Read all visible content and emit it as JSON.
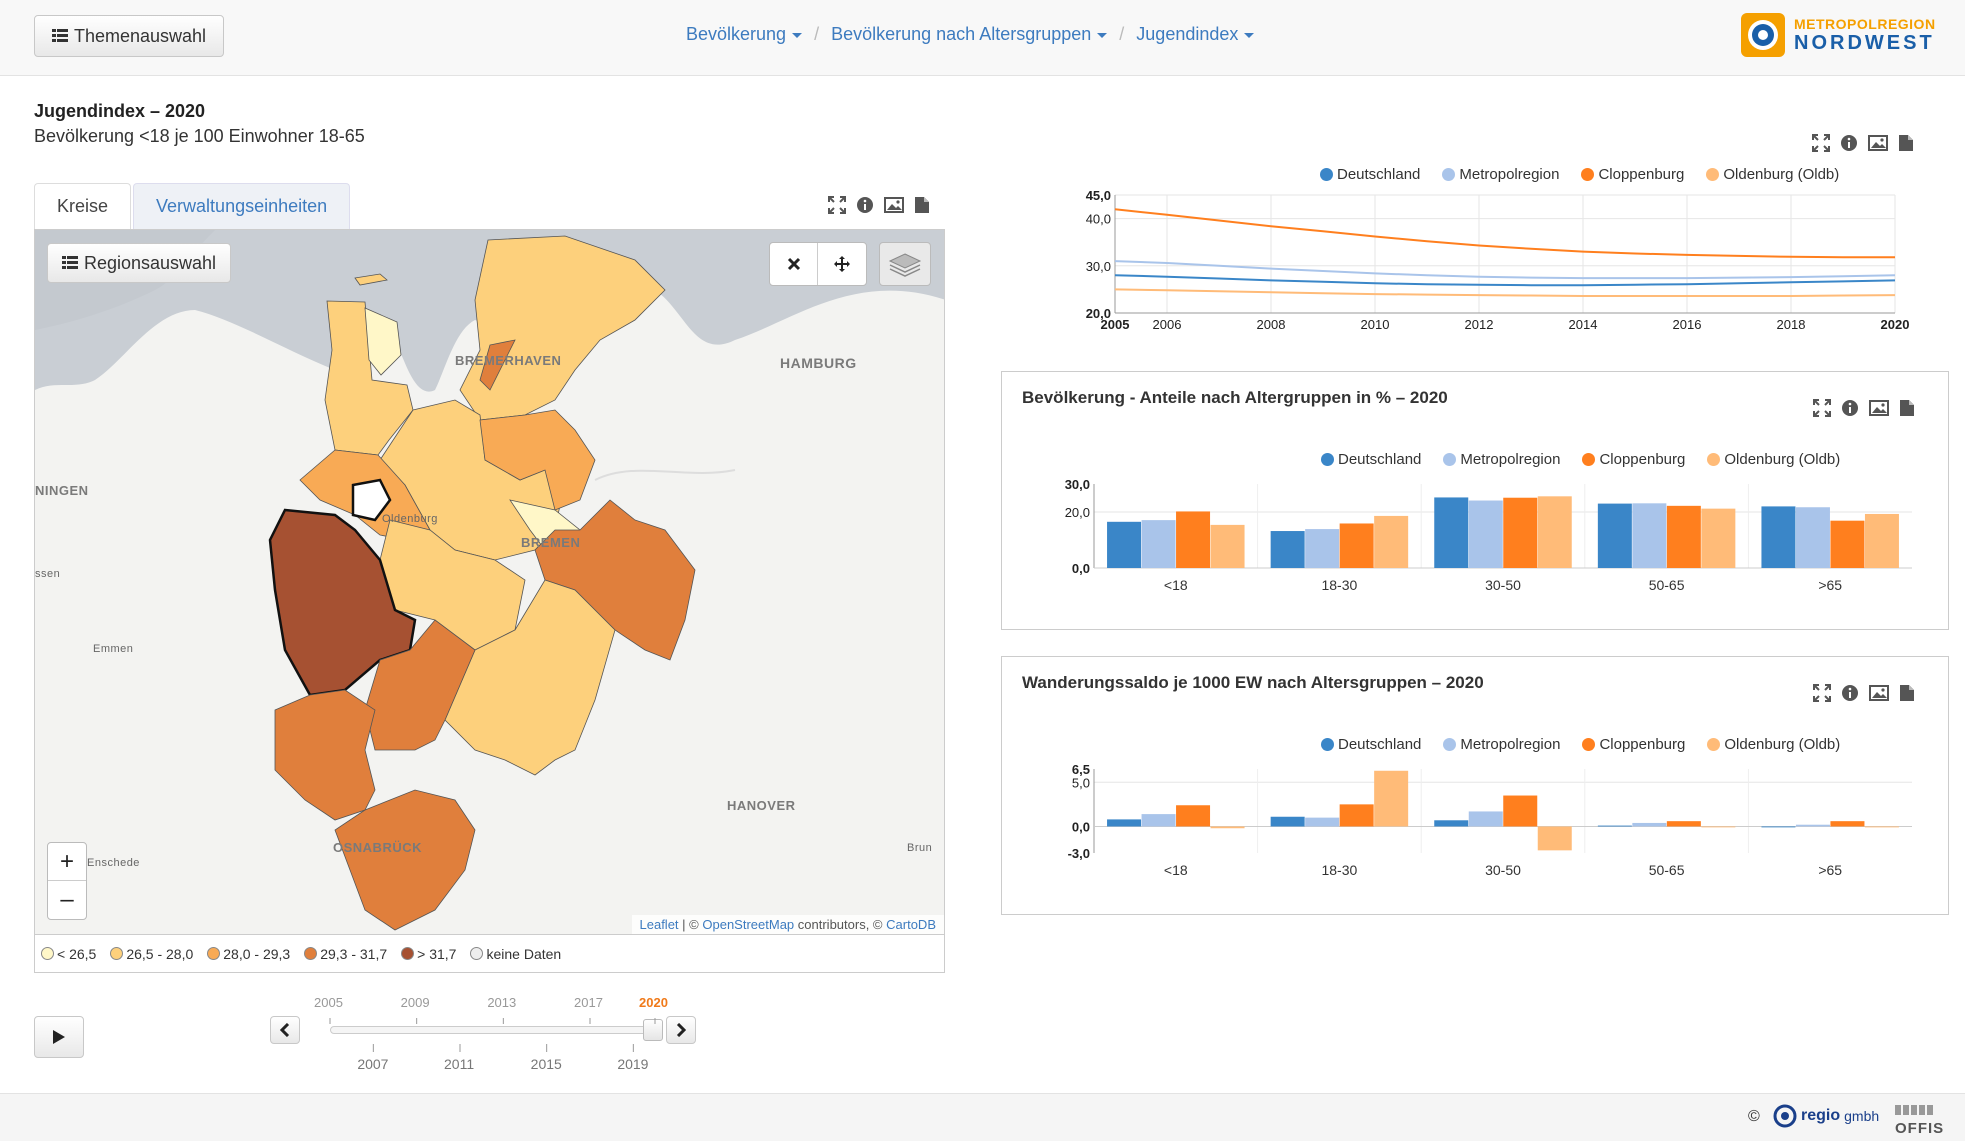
{
  "topbar": {
    "theme_button": "Themenauswahl",
    "breadcrumb": [
      "Bevölkerung",
      "Bevölkerung nach Altersgruppen",
      "Jugendindex"
    ],
    "logo_line1": "METROPOLREGION",
    "logo_line2": "NORDWEST"
  },
  "page": {
    "title": "Jugendindex – 2020",
    "subtitle": "Bevölkerung <18 je 100 Einwohner 18-65"
  },
  "map": {
    "tabs": [
      "Kreise",
      "Verwaltungseinheiten"
    ],
    "region_button": "Regionsauswahl",
    "zoom_in": "+",
    "zoom_out": "–",
    "attribution": {
      "leaflet": "Leaflet",
      "sep": "| ©",
      "osm": "OpenStreetMap",
      "contrib": "contributors, ©",
      "carto": "CartoDB"
    },
    "place_labels": {
      "bremerhaven": "BREMERHAVEN",
      "hamburg": "HAMBURG",
      "oldenburg": "Oldenburg",
      "bremen": "BREMEN",
      "ningen": "NINGEN",
      "emmen": "Emmen",
      "assen": "ssen",
      "hanover": "HANOVER",
      "osnabrueck": "OSNABRÜCK",
      "enschede": "Enschede",
      "brun": "Brun"
    },
    "legend": [
      {
        "label": "< 26,5",
        "color": "#fff7c8"
      },
      {
        "label": "26,5 - 28,0",
        "color": "#fdd07c"
      },
      {
        "label": "28,0 - 29,3",
        "color": "#f8aa55"
      },
      {
        "label": "29,3 - 31,7",
        "color": "#e07f3c"
      },
      {
        "label": "> 31,7",
        "color": "#a65132"
      },
      {
        "label": "keine Daten",
        "color": "#eeeeee"
      }
    ]
  },
  "timeline": {
    "years_top": [
      "2005",
      "2009",
      "2013",
      "2017",
      "2020"
    ],
    "years_bottom": [
      "2007",
      "2011",
      "2015",
      "2019"
    ],
    "selected_fraction": 1.0
  },
  "legend_series": [
    {
      "name": "Deutschland",
      "color": "#3a86c8"
    },
    {
      "name": "Metropolregion",
      "color": "#a9c4ea"
    },
    {
      "name": "Cloppenburg",
      "color": "#ff7f1e"
    },
    {
      "name": "Oldenburg (Oldb)",
      "color": "#ffbb78"
    }
  ],
  "chart_data": [
    {
      "type": "line",
      "title": "",
      "x": [
        2005,
        2006,
        2007,
        2008,
        2009,
        2010,
        2011,
        2012,
        2013,
        2014,
        2015,
        2016,
        2017,
        2018,
        2019,
        2020
      ],
      "x_ticks": [
        "2005",
        "2006",
        "2008",
        "2010",
        "2012",
        "2014",
        "2016",
        "2018",
        "2020"
      ],
      "y_ticks": [
        "45,0",
        "40,0",
        "30,0",
        "20,0"
      ],
      "ylim": [
        20,
        45
      ],
      "series": [
        {
          "name": "Deutschland",
          "values": [
            28.0,
            27.7,
            27.3,
            26.9,
            26.6,
            26.3,
            26.1,
            26.0,
            25.9,
            25.9,
            26.0,
            26.1,
            26.3,
            26.5,
            26.7,
            26.9
          ]
        },
        {
          "name": "Metropolregion",
          "values": [
            31.0,
            30.6,
            30.0,
            29.4,
            28.9,
            28.4,
            28.0,
            27.7,
            27.5,
            27.4,
            27.4,
            27.4,
            27.5,
            27.6,
            27.8,
            28.0
          ]
        },
        {
          "name": "Cloppenburg",
          "values": [
            42.0,
            40.8,
            39.6,
            38.4,
            37.3,
            36.2,
            35.2,
            34.3,
            33.6,
            33.0,
            32.6,
            32.3,
            32.1,
            31.9,
            31.8,
            31.8
          ]
        },
        {
          "name": "Oldenburg (Oldb)",
          "values": [
            25.0,
            24.8,
            24.6,
            24.4,
            24.2,
            24.0,
            23.9,
            23.8,
            23.7,
            23.6,
            23.6,
            23.6,
            23.6,
            23.6,
            23.7,
            23.8
          ]
        }
      ]
    },
    {
      "type": "bar",
      "title": "Bevölkerung - Anteile nach Altergruppen in % – 2020",
      "categories": [
        "<18",
        "18-30",
        "30-50",
        "50-65",
        ">65"
      ],
      "y_ticks": [
        "30,0",
        "20,0",
        "0,0"
      ],
      "ylim": [
        0,
        30
      ],
      "series": [
        {
          "name": "Deutschland",
          "values": [
            16.5,
            13.2,
            25.2,
            23.0,
            22.0
          ]
        },
        {
          "name": "Metropolregion",
          "values": [
            17.1,
            13.9,
            24.1,
            23.1,
            21.7
          ]
        },
        {
          "name": "Cloppenburg",
          "values": [
            20.2,
            15.9,
            25.1,
            22.2,
            16.9
          ]
        },
        {
          "name": "Oldenburg (Oldb)",
          "values": [
            15.4,
            18.6,
            25.6,
            21.2,
            19.3
          ]
        }
      ]
    },
    {
      "type": "bar",
      "title": "Wanderungssaldo je 1000 EW nach Altersgruppen – 2020",
      "categories": [
        "<18",
        "18-30",
        "30-50",
        "50-65",
        ">65"
      ],
      "y_ticks": [
        "6,5",
        "5,0",
        "0,0",
        "-3,0"
      ],
      "ylim": [
        -3,
        6.5
      ],
      "series": [
        {
          "name": "Deutschland",
          "values": [
            0.8,
            1.1,
            0.7,
            0.1,
            -0.1
          ]
        },
        {
          "name": "Metropolregion",
          "values": [
            1.4,
            1.0,
            1.7,
            0.4,
            0.2
          ]
        },
        {
          "name": "Cloppenburg",
          "values": [
            2.4,
            2.5,
            3.5,
            0.6,
            0.6
          ]
        },
        {
          "name": "Oldenburg (Oldb)",
          "values": [
            -0.2,
            6.3,
            -2.7,
            -0.1,
            -0.1
          ]
        }
      ]
    }
  ],
  "footer": {
    "copyright": "©",
    "regio": "regio",
    "gmbh": "gmbh",
    "offis": "OFFIS"
  }
}
